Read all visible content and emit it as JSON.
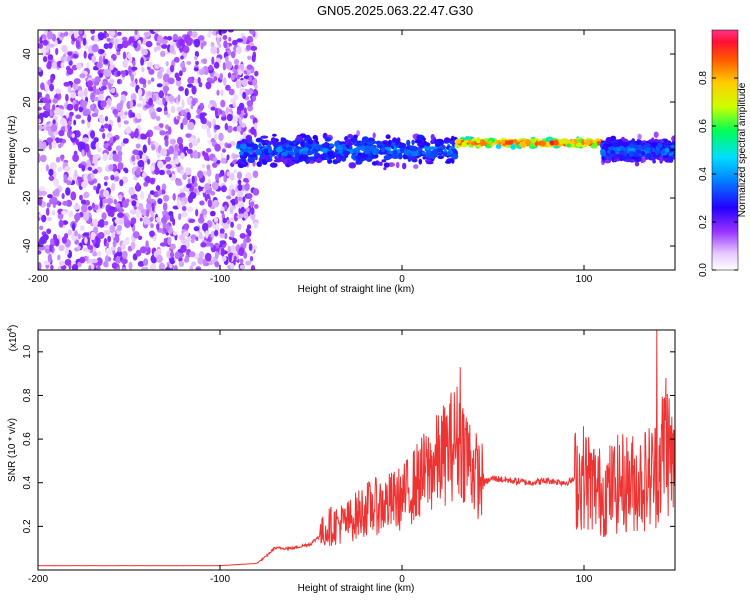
{
  "title": "GN05.2025.063.22.47.G30",
  "chart_data": [
    {
      "type": "heatmap",
      "xlabel": "Height of straight line (km)",
      "ylabel": "Frequency (Hz)",
      "xlim": [
        -200,
        150
      ],
      "ylim": [
        -50,
        50
      ],
      "xticks": [
        -200,
        -100,
        0,
        100
      ],
      "yticks": [
        40,
        20,
        0,
        -20,
        -40
      ],
      "colorbar": {
        "label": "Normalized spectral amplitude",
        "range": [
          0,
          1
        ],
        "ticks": [
          0.0,
          0.2,
          0.4,
          0.6,
          0.8
        ]
      },
      "features": [
        {
          "x_range": [
            -200,
            -80
          ],
          "f_range": [
            -50,
            50
          ],
          "amplitude": 0.1,
          "pattern": "broadband noise"
        },
        {
          "x_range": [
            -90,
            30
          ],
          "f_center": 0,
          "f_halfwidth": 8,
          "amplitude": 0.35,
          "pattern": "signal band"
        },
        {
          "x_range": [
            30,
            110
          ],
          "f_center": 3,
          "f_halfwidth": 2,
          "amplitude": 0.9,
          "pattern": "strong narrow signal"
        },
        {
          "x_range": [
            110,
            150
          ],
          "f_center": 0,
          "f_halfwidth": 6,
          "amplitude": 0.35,
          "pattern": "signal band"
        }
      ]
    },
    {
      "type": "line",
      "xlabel": "Height of straight line (km)",
      "ylabel": "SNR (10 * v/v)",
      "y_multiplier": "(x10",
      "y_multiplier_exp": "4",
      "xlim": [
        -200,
        150
      ],
      "ylim": [
        0,
        1.1
      ],
      "xticks": [
        -200,
        -100,
        0,
        100
      ],
      "yticks": [
        0.2,
        0.4,
        0.6,
        0.8,
        1.0
      ],
      "color": "#ee3333",
      "x": [
        -200,
        -150,
        -100,
        -80,
        -75,
        -70,
        -60,
        -50,
        -40,
        -30,
        -20,
        -10,
        0,
        10,
        20,
        30,
        35,
        40,
        42,
        45,
        50,
        60,
        70,
        80,
        90,
        100,
        110,
        120,
        130,
        140,
        145,
        150
      ],
      "y": [
        0.02,
        0.02,
        0.02,
        0.03,
        0.06,
        0.1,
        0.1,
        0.12,
        0.2,
        0.22,
        0.28,
        0.3,
        0.33,
        0.42,
        0.5,
        0.6,
        0.55,
        0.45,
        0.42,
        0.4,
        0.42,
        0.41,
        0.4,
        0.41,
        0.4,
        0.43,
        0.35,
        0.4,
        0.4,
        0.45,
        0.6,
        0.45
      ],
      "peaks": [
        {
          "x": 32,
          "y": 0.93
        },
        {
          "x": 140,
          "y": 1.1
        },
        {
          "x": 145,
          "y": 0.88
        }
      ]
    }
  ]
}
